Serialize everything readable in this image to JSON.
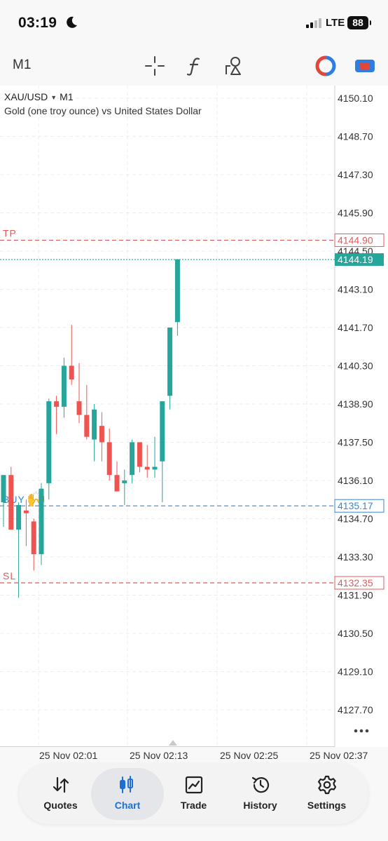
{
  "status_bar": {
    "time": "03:19",
    "network": "LTE",
    "battery": "88"
  },
  "toolbar": {
    "timeframe": "M1",
    "icons": [
      "crosshair-icon",
      "function-icon",
      "objects-icon",
      "trade-circle-icon",
      "one-click-icon"
    ]
  },
  "chart": {
    "symbol": "XAU/USD",
    "timeframe": "M1",
    "description": "Gold (one troy ounce) vs United States Dollar",
    "tp_label": "TP",
    "sl_label": "SL",
    "buy_label": "BUY",
    "buy_emoji": "🙌",
    "tp_price": "4144.90",
    "current_price": "4144.19",
    "buy_price": "4135.17",
    "sl_price": "4132.35",
    "colors": {
      "bull": "#26a69a",
      "bear": "#ef5350",
      "tp": "#e05b5b",
      "buy": "#3a85d8"
    }
  },
  "chart_data": {
    "type": "candlestick",
    "y_ticks": [
      "4150.10",
      "4148.70",
      "4147.30",
      "4145.90",
      "4144.50",
      "4143.10",
      "4141.70",
      "4140.30",
      "4138.90",
      "4137.50",
      "4136.10",
      "4134.70",
      "4133.30",
      "4131.90",
      "4130.50",
      "4129.10",
      "4127.70"
    ],
    "ylim": [
      4126.9,
      4151.2
    ],
    "x_ticks": [
      "25 Nov 02:01",
      "25 Nov 02:13",
      "25 Nov 02:25",
      "25 Nov 02:37"
    ],
    "grid": true,
    "levels": {
      "tp": 4144.9,
      "current": 4144.19,
      "buy": 4135.17,
      "sl": 4132.35
    },
    "candles": [
      {
        "o": 4135.3,
        "h": 4136.3,
        "l": 4134.4,
        "c": 4136.3
      },
      {
        "o": 4136.3,
        "h": 4136.6,
        "l": 4134.3,
        "c": 4134.3
      },
      {
        "o": 4134.3,
        "h": 4135.3,
        "l": 4131.8,
        "c": 4135.2
      },
      {
        "o": 4135.0,
        "h": 4135.4,
        "l": 4133.7,
        "c": 4134.9
      },
      {
        "o": 4134.6,
        "h": 4134.7,
        "l": 4132.8,
        "c": 4133.4
      },
      {
        "o": 4133.4,
        "h": 4136.0,
        "l": 4133.0,
        "c": 4135.8
      },
      {
        "o": 4136.0,
        "h": 4139.1,
        "l": 4135.4,
        "c": 4139.0
      },
      {
        "o": 4139.0,
        "h": 4139.2,
        "l": 4137.8,
        "c": 4138.8
      },
      {
        "o": 4138.8,
        "h": 4140.6,
        "l": 4138.4,
        "c": 4140.3
      },
      {
        "o": 4140.3,
        "h": 4141.8,
        "l": 4139.6,
        "c": 4139.8
      },
      {
        "o": 4139.0,
        "h": 4140.4,
        "l": 4138.2,
        "c": 4138.5
      },
      {
        "o": 4138.5,
        "h": 4139.6,
        "l": 4137.6,
        "c": 4137.7
      },
      {
        "o": 4137.6,
        "h": 4138.9,
        "l": 4136.8,
        "c": 4138.7
      },
      {
        "o": 4138.1,
        "h": 4138.6,
        "l": 4136.8,
        "c": 4137.5
      },
      {
        "o": 4137.5,
        "h": 4138.0,
        "l": 4136.1,
        "c": 4136.3
      },
      {
        "o": 4136.3,
        "h": 4136.8,
        "l": 4135.7,
        "c": 4135.7
      },
      {
        "o": 4136.0,
        "h": 4136.5,
        "l": 4135.2,
        "c": 4136.1
      },
      {
        "o": 4136.3,
        "h": 4137.6,
        "l": 4136.0,
        "c": 4137.5
      },
      {
        "o": 4137.5,
        "h": 4137.5,
        "l": 4136.4,
        "c": 4136.6
      },
      {
        "o": 4136.6,
        "h": 4137.4,
        "l": 4136.2,
        "c": 4136.5
      },
      {
        "o": 4136.5,
        "h": 4137.7,
        "l": 4136.2,
        "c": 4136.6
      },
      {
        "o": 4136.8,
        "h": 4138.9,
        "l": 4135.3,
        "c": 4139.0
      },
      {
        "o": 4139.2,
        "h": 4141.7,
        "l": 4138.7,
        "c": 4141.7
      },
      {
        "o": 4141.9,
        "h": 4144.2,
        "l": 4141.4,
        "c": 4144.2
      }
    ]
  },
  "time_axis": [
    "25 Nov 02:01",
    "25 Nov 02:13",
    "25 Nov 02:25",
    "25 Nov 02:37"
  ],
  "nav": {
    "items": [
      {
        "label": "Quotes",
        "icon": "quotes-icon"
      },
      {
        "label": "Chart",
        "icon": "chart-icon"
      },
      {
        "label": "Trade",
        "icon": "trade-icon"
      },
      {
        "label": "History",
        "icon": "history-icon"
      },
      {
        "label": "Settings",
        "icon": "settings-icon"
      }
    ],
    "active": "Chart"
  }
}
